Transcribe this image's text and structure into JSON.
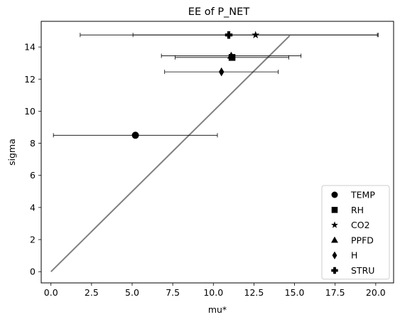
{
  "chart_data": {
    "type": "scatter",
    "title": "EE of P_NET",
    "xlabel": "mu*",
    "ylabel": "sigma",
    "xlim": [
      -0.6,
      21.1
    ],
    "ylim": [
      -0.7,
      15.6
    ],
    "xticks": [
      0.0,
      2.5,
      5.0,
      7.5,
      10.0,
      12.5,
      15.0,
      17.5,
      20.0
    ],
    "xtick_labels": [
      "0.0",
      "2.5",
      "5.0",
      "7.5",
      "10.0",
      "12.5",
      "15.0",
      "17.5",
      "20.0"
    ],
    "yticks": [
      0,
      2,
      4,
      6,
      8,
      10,
      12,
      14
    ],
    "ytick_labels": [
      "0",
      "2",
      "4",
      "6",
      "8",
      "10",
      "12",
      "14"
    ],
    "grid": false,
    "legend_position": "lower-right",
    "reference_line": {
      "x": [
        0,
        14.7
      ],
      "y": [
        0,
        14.7
      ],
      "color": "#808080"
    },
    "series": [
      {
        "name": "TEMP",
        "marker": "circle",
        "x": 5.2,
        "y": 8.5,
        "xerr": 5.05,
        "color": "#000000"
      },
      {
        "name": "RH",
        "marker": "square",
        "x": 11.15,
        "y": 13.35,
        "xerr": 3.5,
        "color": "#000000"
      },
      {
        "name": "CO2",
        "marker": "star",
        "x": 12.6,
        "y": 14.75,
        "xerr": 7.55,
        "color": "#000000"
      },
      {
        "name": "PPFD",
        "marker": "triangle",
        "x": 11.1,
        "y": 13.45,
        "xerr": 4.3,
        "color": "#000000"
      },
      {
        "name": "H",
        "marker": "diamond",
        "x": 10.5,
        "y": 12.45,
        "xerr": 3.5,
        "color": "#000000"
      },
      {
        "name": "STRU",
        "marker": "plus",
        "x": 10.95,
        "y": 14.75,
        "xerr": 9.15,
        "color": "#000000"
      }
    ]
  }
}
